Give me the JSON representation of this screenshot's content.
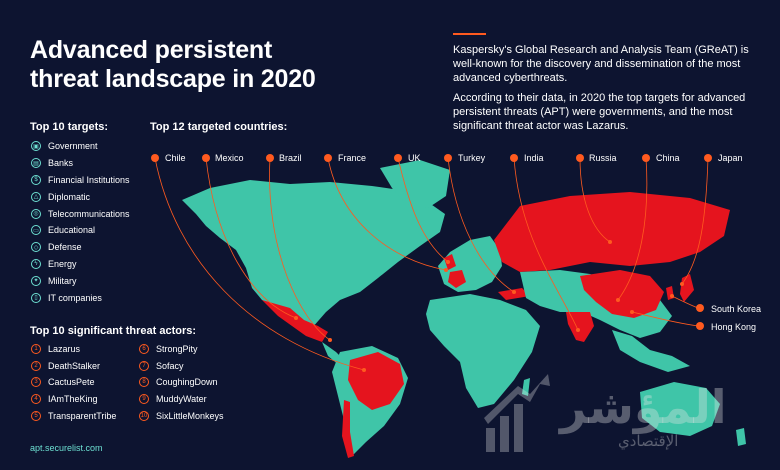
{
  "title_line1": "Advanced persistent",
  "title_line2": "threat landscape in 2020",
  "intro": [
    "Kaspersky's Global Research and Analysis Team (GReAT) is well-known for the discovery and dissemination of the most advanced cyberthreats.",
    "According to their data, in 2020 the top targets for advanced persistent threats (APT) were governments, and the most significant threat actor was Lazarus."
  ],
  "targets_heading": "Top 10 targets:",
  "targets": [
    "Government",
    "Banks",
    "Financial Institutions",
    "Diplomatic",
    "Telecommunications",
    "Educational",
    "Defense",
    "Energy",
    "Military",
    "IT companies"
  ],
  "countries_heading": "Top 12 targeted countries:",
  "countries_top": [
    "Chile",
    "Mexico",
    "Brazil",
    "France",
    "UK",
    "Turkey",
    "India",
    "Russia",
    "China",
    "Japan"
  ],
  "countries_side": [
    "South Korea",
    "Hong Kong"
  ],
  "actors_heading": "Top 10 significant threat actors:",
  "actors": [
    {
      "num": "1",
      "name": "Lazarus"
    },
    {
      "num": "2",
      "name": "DeathStalker"
    },
    {
      "num": "3",
      "name": "CactusPete"
    },
    {
      "num": "4",
      "name": "IAmTheKing"
    },
    {
      "num": "5",
      "name": "TransparentTribe"
    },
    {
      "num": "6",
      "name": "StrongPity"
    },
    {
      "num": "7",
      "name": "Sofacy"
    },
    {
      "num": "8",
      "name": "CoughingDown"
    },
    {
      "num": "9",
      "name": "MuddyWater"
    },
    {
      "num": "10",
      "name": "SixLittleMonkeys"
    }
  ],
  "footer_link": "apt.securelist.com",
  "watermark_main": "المؤشر",
  "watermark_sub": "الإقتصادي",
  "colors": {
    "background": "#0d1430",
    "land": "#3fc5a8",
    "highlight": "#e5141e",
    "accent": "#ff5a1f",
    "teal_text": "#6de0d2"
  }
}
